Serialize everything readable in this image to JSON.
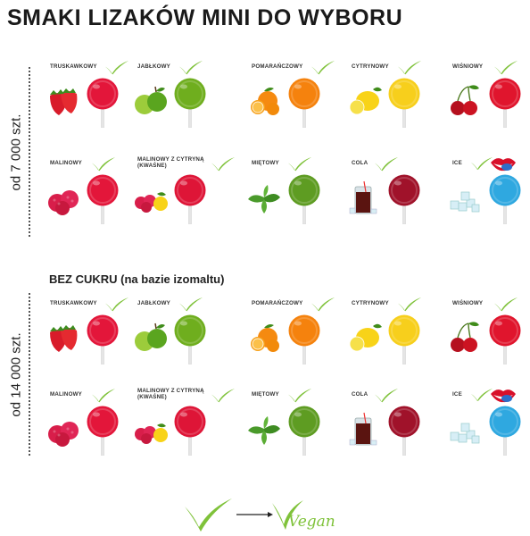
{
  "title": "SMAKI LIZAKÓW MINI DO WYBORU",
  "sections": [
    {
      "side_label": "od 7 000 szt.",
      "subtitle": "",
      "rows": [
        [
          {
            "label": "TRUSKAWKOWY",
            "fruit": "strawberry",
            "color": "#e3163a"
          },
          {
            "label": "JABŁKOWY",
            "fruit": "apple",
            "color": "#6fae1e"
          },
          {
            "label": "POMARAŃCZOWY",
            "fruit": "orange",
            "color": "#f5820d"
          },
          {
            "label": "CYTRYNOWY",
            "fruit": "lemon",
            "color": "#f7cf1c"
          },
          {
            "label": "WIŚNIOWY",
            "fruit": "cherry",
            "color": "#e0152d"
          }
        ],
        [
          {
            "label": "MALINOWY",
            "fruit": "raspberry",
            "color": "#e3163a"
          },
          {
            "label": "MALINOWY Z CYTRYNĄ (KWAŚNE)",
            "fruit": "raspberry-lemon",
            "color": "#de1537"
          },
          {
            "label": "MIĘTOWY",
            "fruit": "mint",
            "color": "#5e9c22"
          },
          {
            "label": "COLA",
            "fruit": "cola",
            "color": "#a0122a"
          },
          {
            "label": "ICE",
            "fruit": "ice",
            "color": "#2fa8e0",
            "extra": "lips"
          }
        ]
      ]
    },
    {
      "side_label": "od 14 000 szt.",
      "subtitle": "BEZ CUKRU (na bazie izomaltu)",
      "rows": [
        [
          {
            "label": "TRUSKAWKOWY",
            "fruit": "strawberry",
            "color": "#e3163a"
          },
          {
            "label": "JABŁKOWY",
            "fruit": "apple",
            "color": "#6fae1e"
          },
          {
            "label": "POMARAŃCZOWY",
            "fruit": "orange",
            "color": "#f5820d"
          },
          {
            "label": "CYTRYNOWY",
            "fruit": "lemon",
            "color": "#f7cf1c"
          },
          {
            "label": "WIŚNIOWY",
            "fruit": "cherry",
            "color": "#e0152d"
          }
        ],
        [
          {
            "label": "MALINOWY",
            "fruit": "raspberry",
            "color": "#e3163a"
          },
          {
            "label": "MALINOWY Z CYTRYNĄ (KWAŚNE)",
            "fruit": "raspberry-lemon",
            "color": "#de1537"
          },
          {
            "label": "MIĘTOWY",
            "fruit": "mint",
            "color": "#5e9c22"
          },
          {
            "label": "COLA",
            "fruit": "cola",
            "color": "#a0122a"
          },
          {
            "label": "ICE",
            "fruit": "ice",
            "color": "#2fa8e0",
            "extra": "lips"
          }
        ]
      ]
    }
  ],
  "footer": {
    "vegan_text": "Vegan",
    "check_color": "#7fc23a"
  }
}
